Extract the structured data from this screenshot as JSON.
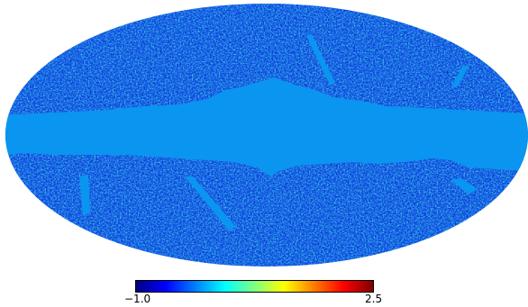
{
  "map": {
    "projection": "mollweide",
    "background_color": "#ffffff",
    "mask_color": "#0a95f0",
    "masked_regions": [
      "galactic-plane-band",
      "point-source-streaks"
    ]
  },
  "colorbar": {
    "min_label": "−1.0",
    "max_label": "2.5",
    "min": -1.0,
    "max": 2.5,
    "colormap": "jet",
    "colors": [
      "#00007f",
      "#0000ff",
      "#007fff",
      "#00ffff",
      "#7fff7f",
      "#ffff00",
      "#ff7f00",
      "#ff0000",
      "#7f0000"
    ]
  }
}
